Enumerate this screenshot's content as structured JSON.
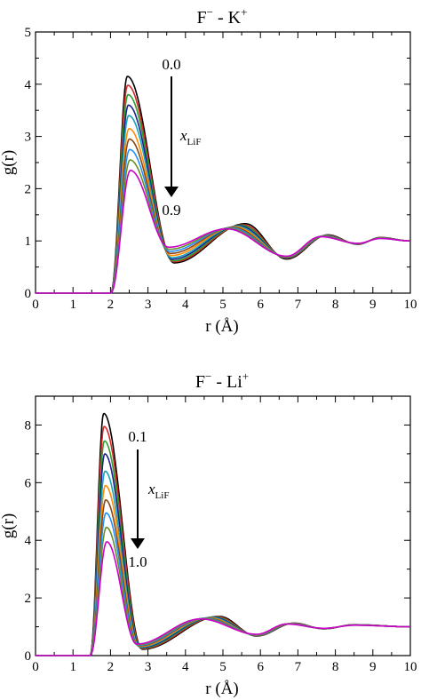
{
  "palette": [
    "#000000",
    "#d62728",
    "#2ca02c",
    "#1f1f8f",
    "#17a2b8",
    "#ff8c00",
    "#8b4513",
    "#1e90ff",
    "#6b8e23",
    "#cc00cc"
  ],
  "chart_data": [
    {
      "type": "line",
      "title_main": "F",
      "title_sup1": "−",
      "title_mid": " - K",
      "title_sup2": "+",
      "xlabel": "r (Å)",
      "ylabel": "g(r)",
      "xlim": [
        0,
        10
      ],
      "ylim": [
        0,
        5
      ],
      "xticks": [
        "0",
        "1",
        "2",
        "3",
        "4",
        "5",
        "6",
        "7",
        "8",
        "9",
        "10"
      ],
      "yticks": [
        "0",
        "1",
        "2",
        "3",
        "4",
        "5"
      ],
      "annotation": {
        "top": "0.0",
        "var": "x",
        "var_sub": "LiF",
        "bottom": "0.9"
      },
      "series": [
        {
          "peak": 4.15,
          "min": 0.58,
          "peak2": 1.33
        },
        {
          "peak": 3.98,
          "min": 0.6,
          "peak2": 1.31
        },
        {
          "peak": 3.8,
          "min": 0.62,
          "peak2": 1.3
        },
        {
          "peak": 3.6,
          "min": 0.65,
          "peak2": 1.29
        },
        {
          "peak": 3.4,
          "min": 0.68,
          "peak2": 1.28
        },
        {
          "peak": 3.15,
          "min": 0.72,
          "peak2": 1.27
        },
        {
          "peak": 2.95,
          "min": 0.76,
          "peak2": 1.26
        },
        {
          "peak": 2.75,
          "min": 0.8,
          "peak2": 1.25
        },
        {
          "peak": 2.55,
          "min": 0.84,
          "peak2": 1.24
        },
        {
          "peak": 2.35,
          "min": 0.88,
          "peak2": 1.23
        }
      ],
      "curve": {
        "r0": 2.0,
        "rpeak": 2.45,
        "rmin": 3.7,
        "rpeak2_start": 5.6,
        "rpeak2_end": 5.1,
        "rmin2": 6.7,
        "rpeak3": 7.8,
        "rmin3": 8.6,
        "rpeak4": 9.2
      }
    },
    {
      "type": "line",
      "title_main": "F",
      "title_sup1": "−",
      "title_mid": " - Li",
      "title_sup2": "+",
      "xlabel": "r (Å)",
      "ylabel": "g(r)",
      "xlim": [
        0,
        10
      ],
      "ylim": [
        0,
        9
      ],
      "xticks": [
        "0",
        "1",
        "2",
        "3",
        "4",
        "5",
        "6",
        "7",
        "8",
        "9",
        "10"
      ],
      "yticks": [
        "0",
        "2",
        "4",
        "6",
        "8"
      ],
      "annotation": {
        "top": "0.1",
        "var": "x",
        "var_sub": "LiF",
        "bottom": "1.0"
      },
      "series": [
        {
          "peak": 8.4,
          "min": 0.22,
          "peak2": 1.36
        },
        {
          "peak": 7.95,
          "min": 0.24,
          "peak2": 1.35
        },
        {
          "peak": 7.45,
          "min": 0.26,
          "peak2": 1.34
        },
        {
          "peak": 7.0,
          "min": 0.28,
          "peak2": 1.33
        },
        {
          "peak": 6.4,
          "min": 0.3,
          "peak2": 1.32
        },
        {
          "peak": 5.9,
          "min": 0.32,
          "peak2": 1.31
        },
        {
          "peak": 5.4,
          "min": 0.34,
          "peak2": 1.3
        },
        {
          "peak": 4.95,
          "min": 0.36,
          "peak2": 1.29
        },
        {
          "peak": 4.45,
          "min": 0.38,
          "peak2": 1.28
        },
        {
          "peak": 3.95,
          "min": 0.4,
          "peak2": 1.27
        }
      ],
      "curve": {
        "r0": 1.45,
        "rpeak": 1.82,
        "rmin": 2.85,
        "rpeak2_start": 4.9,
        "rpeak2_end": 4.4,
        "rmin2": 5.9,
        "rpeak3": 6.9,
        "rmin3": 7.7,
        "rpeak4": 8.5
      }
    }
  ]
}
